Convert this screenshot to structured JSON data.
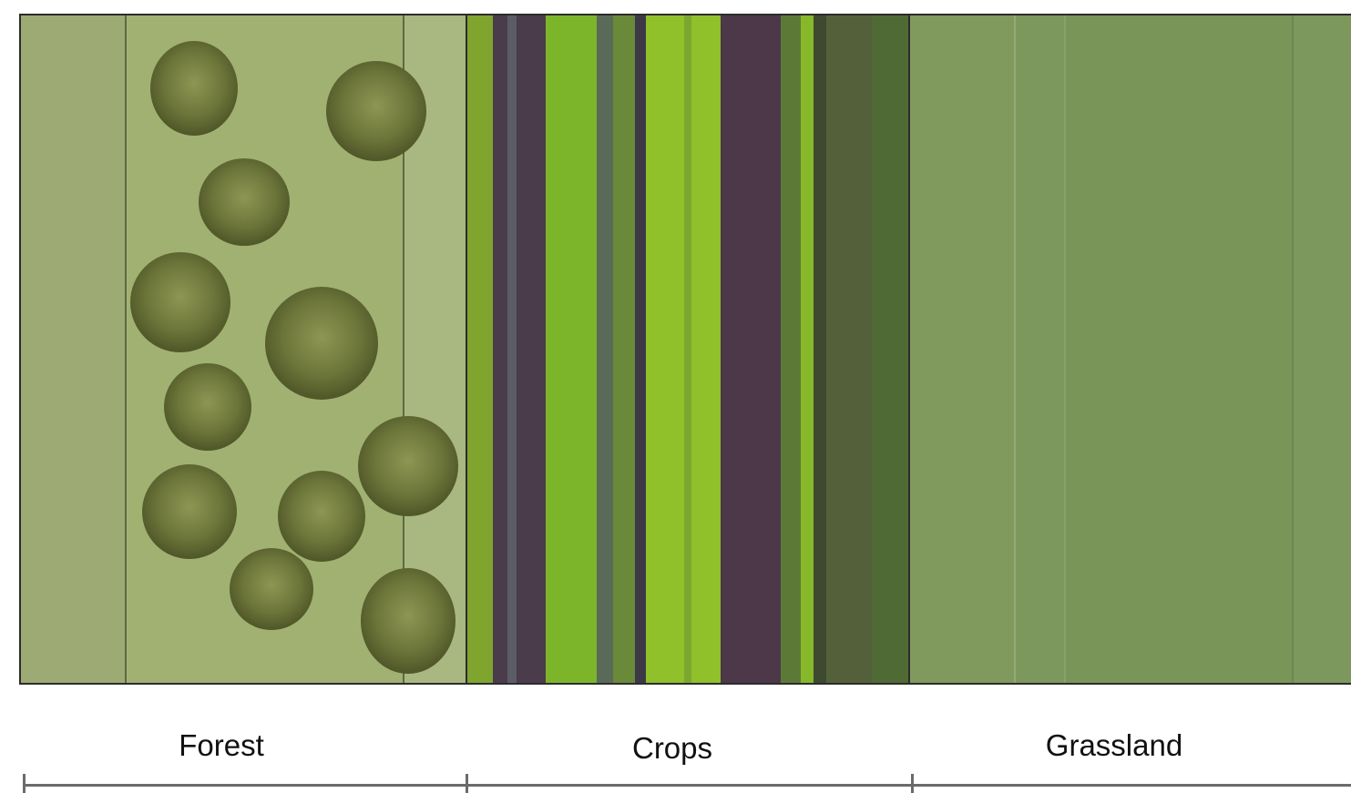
{
  "figure": {
    "panels": [
      {
        "key": "forest",
        "label": "Forest",
        "base_color": "#9aac6e",
        "tree_color": "#6f7a3e"
      },
      {
        "key": "crops",
        "label": "Crops",
        "base_color": "#4b5a3a"
      },
      {
        "key": "grassland",
        "label": "Grassland",
        "base_color": "#7f9a5c"
      }
    ]
  }
}
